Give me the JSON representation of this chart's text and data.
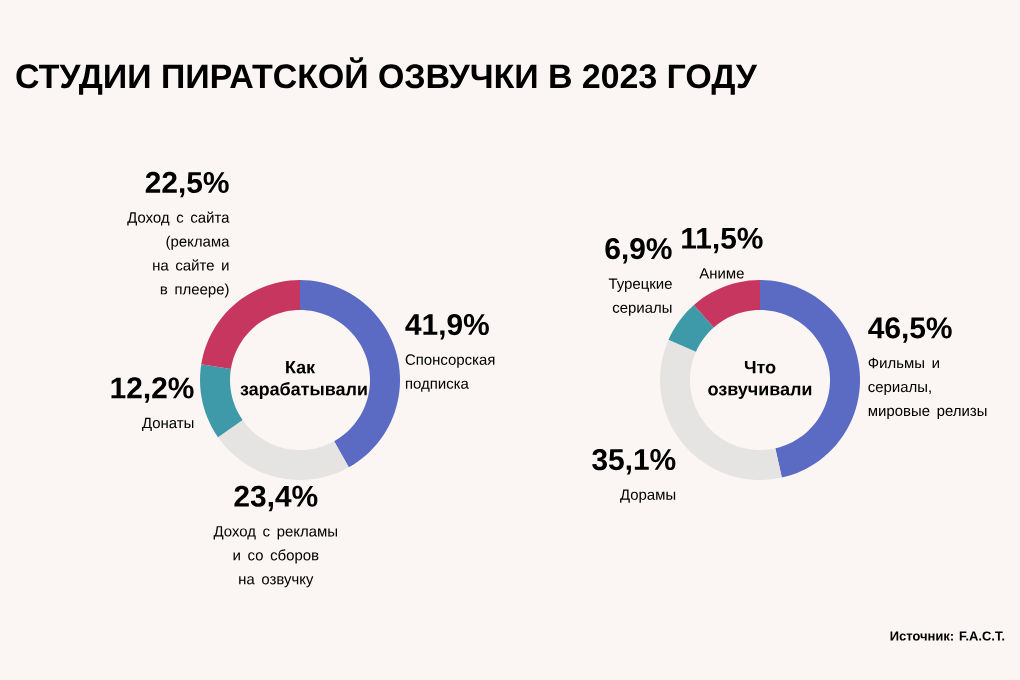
{
  "chart_data": [
    {
      "type": "donut",
      "title": "СТУДИИ ПИРАТСКОЙ ОЗВУЧКИ В 2023 ГОДУ",
      "subtitle": "Как зарабатывали",
      "categories": [
        "Спонсорская подписка",
        "Доход с рекламы и со сборов на озвучку",
        "Донаты",
        "Доход с сайта (реклама на сайте и в плеере)"
      ],
      "values": [
        41.9,
        23.4,
        12.2,
        22.5
      ],
      "value_labels": [
        "41,9%",
        "23,4%",
        "12,2%",
        "22,5%"
      ],
      "colors": [
        "#5b6bc4",
        "#e6e4e3",
        "#3e9aa9",
        "#c7365f"
      ]
    },
    {
      "type": "donut",
      "subtitle": "Что озвучивали",
      "categories": [
        "Фильмы и сериалы, мировые релизы",
        "Дорамы",
        "Турецкие сериалы",
        "Аниме"
      ],
      "values": [
        46.5,
        35.1,
        6.9,
        11.5
      ],
      "value_labels": [
        "46,5%",
        "35,1%",
        "6,9%",
        "11,5%"
      ],
      "colors": [
        "#5b6bc4",
        "#e6e4e3",
        "#3e9aa9",
        "#c7365f"
      ],
      "annotations": [
        "Источник: F.A.C.T."
      ]
    }
  ]
}
